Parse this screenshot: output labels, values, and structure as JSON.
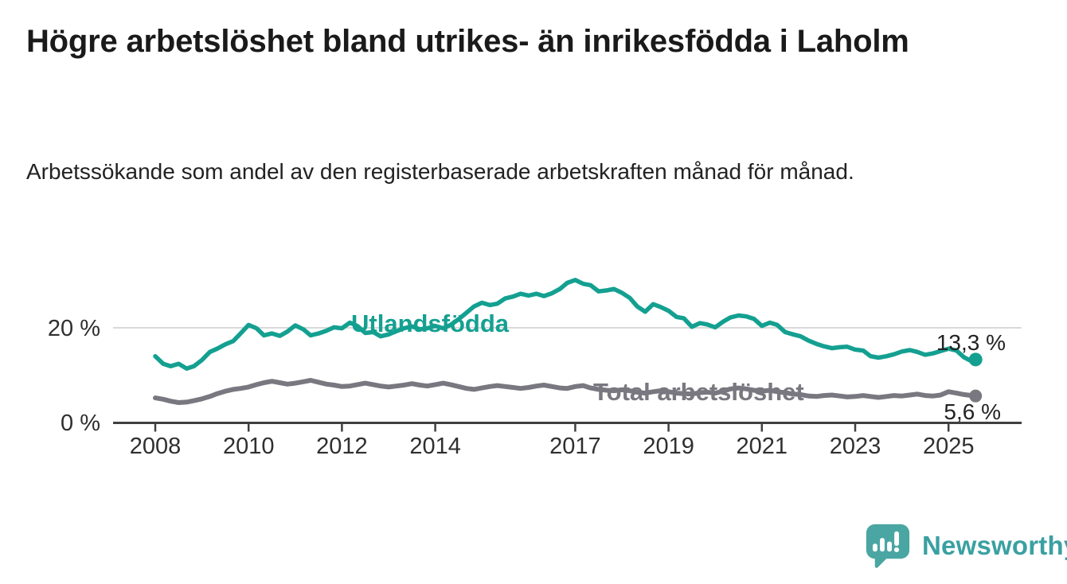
{
  "chart_data": {
    "type": "line",
    "title": "Högre arbetslöshet bland utrikes- än inrikesfödda i Laholm",
    "subtitle": "Arbetssökande som andel av den registerbaserade arbetskraften månad för månad.",
    "unit": "%",
    "grid": "horizontal-gridline-at-20-only",
    "legend_position": "inline-series-labels",
    "xlim": [
      2007.1,
      2026.7
    ],
    "ylim": [
      0,
      33
    ],
    "x_ticks": [
      2008,
      2010,
      2012,
      2014,
      2017,
      2019,
      2021,
      2023,
      2025
    ],
    "y_ticks": [
      {
        "value": 20,
        "label": "20 %"
      },
      {
        "value": 0,
        "label": "0 %"
      }
    ],
    "x": [
      2008.0,
      2008.17,
      2008.33,
      2008.5,
      2008.67,
      2008.83,
      2009.0,
      2009.17,
      2009.33,
      2009.5,
      2009.67,
      2009.83,
      2010.0,
      2010.17,
      2010.33,
      2010.5,
      2010.67,
      2010.83,
      2011.0,
      2011.17,
      2011.33,
      2011.5,
      2011.67,
      2011.83,
      2012.0,
      2012.17,
      2012.33,
      2012.5,
      2012.67,
      2012.83,
      2013.0,
      2013.17,
      2013.33,
      2013.5,
      2013.67,
      2013.83,
      2014.0,
      2014.17,
      2014.33,
      2014.5,
      2014.67,
      2014.83,
      2015.0,
      2015.17,
      2015.33,
      2015.5,
      2015.67,
      2015.83,
      2016.0,
      2016.17,
      2016.33,
      2016.5,
      2016.67,
      2016.83,
      2017.0,
      2017.17,
      2017.33,
      2017.5,
      2017.67,
      2017.83,
      2018.0,
      2018.17,
      2018.33,
      2018.5,
      2018.67,
      2018.83,
      2019.0,
      2019.17,
      2019.33,
      2019.5,
      2019.67,
      2019.83,
      2020.0,
      2020.17,
      2020.33,
      2020.5,
      2020.67,
      2020.83,
      2021.0,
      2021.17,
      2021.33,
      2021.5,
      2021.67,
      2021.83,
      2022.0,
      2022.17,
      2022.33,
      2022.5,
      2022.67,
      2022.83,
      2023.0,
      2023.17,
      2023.33,
      2023.5,
      2023.67,
      2023.83,
      2024.0,
      2024.17,
      2024.33,
      2024.5,
      2024.67,
      2024.83,
      2025.0,
      2025.17,
      2025.33,
      2025.5,
      2025.58
    ],
    "series": [
      {
        "name": "Utlandsfödda",
        "color": "#14a091",
        "end_label": "13,3 %",
        "end_value": 13.3,
        "values": [
          14.0,
          12.4,
          11.9,
          12.4,
          11.4,
          11.9,
          13.2,
          14.9,
          15.6,
          16.5,
          17.2,
          18.8,
          20.6,
          19.9,
          18.4,
          18.8,
          18.3,
          19.2,
          20.5,
          19.7,
          18.4,
          18.8,
          19.4,
          20.1,
          19.9,
          21.1,
          20.4,
          18.9,
          19.1,
          18.2,
          18.6,
          19.3,
          19.9,
          20.3,
          19.7,
          19.9,
          20.4,
          19.9,
          20.6,
          21.8,
          23.2,
          24.5,
          25.3,
          24.8,
          25.1,
          26.2,
          26.6,
          27.2,
          26.8,
          27.2,
          26.7,
          27.3,
          28.2,
          29.5,
          30.1,
          29.3,
          29.0,
          27.7,
          27.9,
          28.2,
          27.4,
          26.3,
          24.5,
          23.4,
          25.0,
          24.4,
          23.6,
          22.3,
          22.0,
          20.2,
          21.0,
          20.7,
          20.1,
          21.3,
          22.2,
          22.6,
          22.4,
          21.9,
          20.4,
          21.1,
          20.6,
          19.1,
          18.6,
          18.2,
          17.3,
          16.6,
          16.1,
          15.7,
          15.9,
          16.0,
          15.4,
          15.2,
          14.0,
          13.7,
          14.0,
          14.4,
          15.0,
          15.3,
          14.9,
          14.3,
          14.6,
          15.1,
          15.6,
          15.2,
          13.8,
          12.9,
          13.3
        ]
      },
      {
        "name": "Total arbetslöshet",
        "color": "#797880",
        "end_label": "5,6 %",
        "end_value": 5.6,
        "values": [
          5.2,
          4.9,
          4.5,
          4.2,
          4.3,
          4.6,
          5.0,
          5.5,
          6.1,
          6.6,
          7.0,
          7.2,
          7.5,
          8.0,
          8.4,
          8.7,
          8.4,
          8.1,
          8.3,
          8.6,
          8.9,
          8.5,
          8.1,
          7.9,
          7.6,
          7.7,
          8.0,
          8.3,
          8.0,
          7.7,
          7.5,
          7.7,
          7.9,
          8.2,
          7.9,
          7.7,
          8.0,
          8.3,
          8.0,
          7.6,
          7.2,
          7.0,
          7.3,
          7.6,
          7.8,
          7.6,
          7.4,
          7.2,
          7.4,
          7.7,
          7.9,
          7.6,
          7.3,
          7.2,
          7.6,
          7.8,
          7.3,
          7.0,
          6.8,
          6.7,
          6.9,
          6.7,
          6.4,
          6.2,
          6.5,
          6.7,
          6.5,
          6.2,
          6.1,
          6.0,
          6.3,
          6.4,
          6.2,
          6.6,
          7.1,
          7.3,
          7.1,
          6.8,
          6.6,
          6.8,
          6.5,
          6.3,
          6.0,
          5.9,
          5.6,
          5.5,
          5.7,
          5.8,
          5.6,
          5.4,
          5.5,
          5.7,
          5.5,
          5.3,
          5.5,
          5.7,
          5.6,
          5.8,
          6.0,
          5.7,
          5.6,
          5.8,
          6.5,
          6.2,
          5.9,
          5.7,
          5.6
        ]
      }
    ]
  },
  "colors": {
    "grid": "#d9d9d9",
    "axis": "#3f3f3f",
    "tick_text": "#2f2f2f",
    "annotation_text": "#222222",
    "title_text": "#1a1a1a",
    "logo_bubble": "#4aa6a2",
    "logo_text": "#3aa0a2"
  },
  "logo": {
    "name": "Newsworthy",
    "icon": "speech-bubble-bar-chart-icon"
  }
}
